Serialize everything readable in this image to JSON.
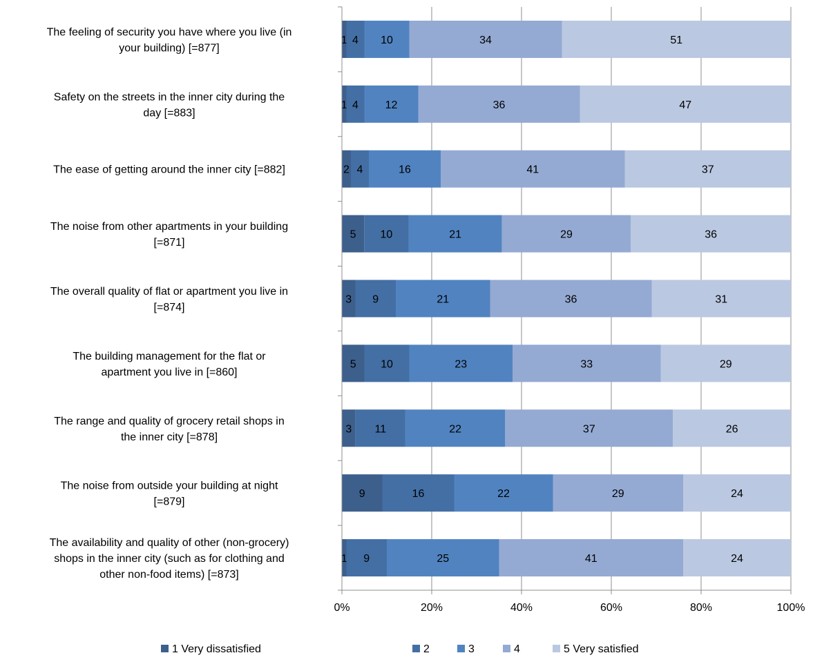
{
  "chart_data": {
    "type": "bar",
    "orientation": "horizontal",
    "stacked": "percent",
    "categories": [
      [
        "The feeling of security you have where you live (in",
        "your building) [=877]"
      ],
      [
        "Safety on the streets in the inner city during the",
        "day [=883]"
      ],
      [
        "The ease of getting around the inner city [=882]"
      ],
      [
        "The noise from other apartments in your building",
        "[=871]"
      ],
      [
        "The overall quality of flat or apartment you live in",
        "[=874]"
      ],
      [
        "The building management for the flat or",
        "apartment you live in [=860]"
      ],
      [
        "The range and quality of grocery retail shops in",
        "the inner city [=878]"
      ],
      [
        "The noise from outside your building at night",
        "[=879]"
      ],
      [
        "The availability and quality of other (non-grocery)",
        "shops in the inner city (such as for clothing and",
        "other non-food items) [=873]"
      ]
    ],
    "series": [
      {
        "name": "1 Very dissatisfied",
        "color": "#3d5f8c",
        "values": [
          1,
          1,
          2,
          5,
          3,
          5,
          3,
          9,
          1
        ]
      },
      {
        "name": "2",
        "color": "#436fa4",
        "values": [
          4,
          4,
          4,
          10,
          9,
          10,
          11,
          16,
          9
        ]
      },
      {
        "name": "3",
        "color": "#5183c0",
        "values": [
          10,
          12,
          16,
          21,
          21,
          23,
          22,
          22,
          25
        ]
      },
      {
        "name": "4",
        "color": "#94aad3",
        "values": [
          34,
          36,
          41,
          29,
          36,
          33,
          37,
          29,
          41
        ]
      },
      {
        "name": "5 Very satisfied",
        "color": "#bac8e1",
        "values": [
          51,
          47,
          37,
          36,
          31,
          29,
          26,
          24,
          24
        ]
      }
    ],
    "x_ticks": [
      "0%",
      "20%",
      "40%",
      "60%",
      "80%",
      "100%"
    ],
    "xlim": [
      0,
      100
    ],
    "grid": "vertical",
    "legend_position": "bottom"
  }
}
